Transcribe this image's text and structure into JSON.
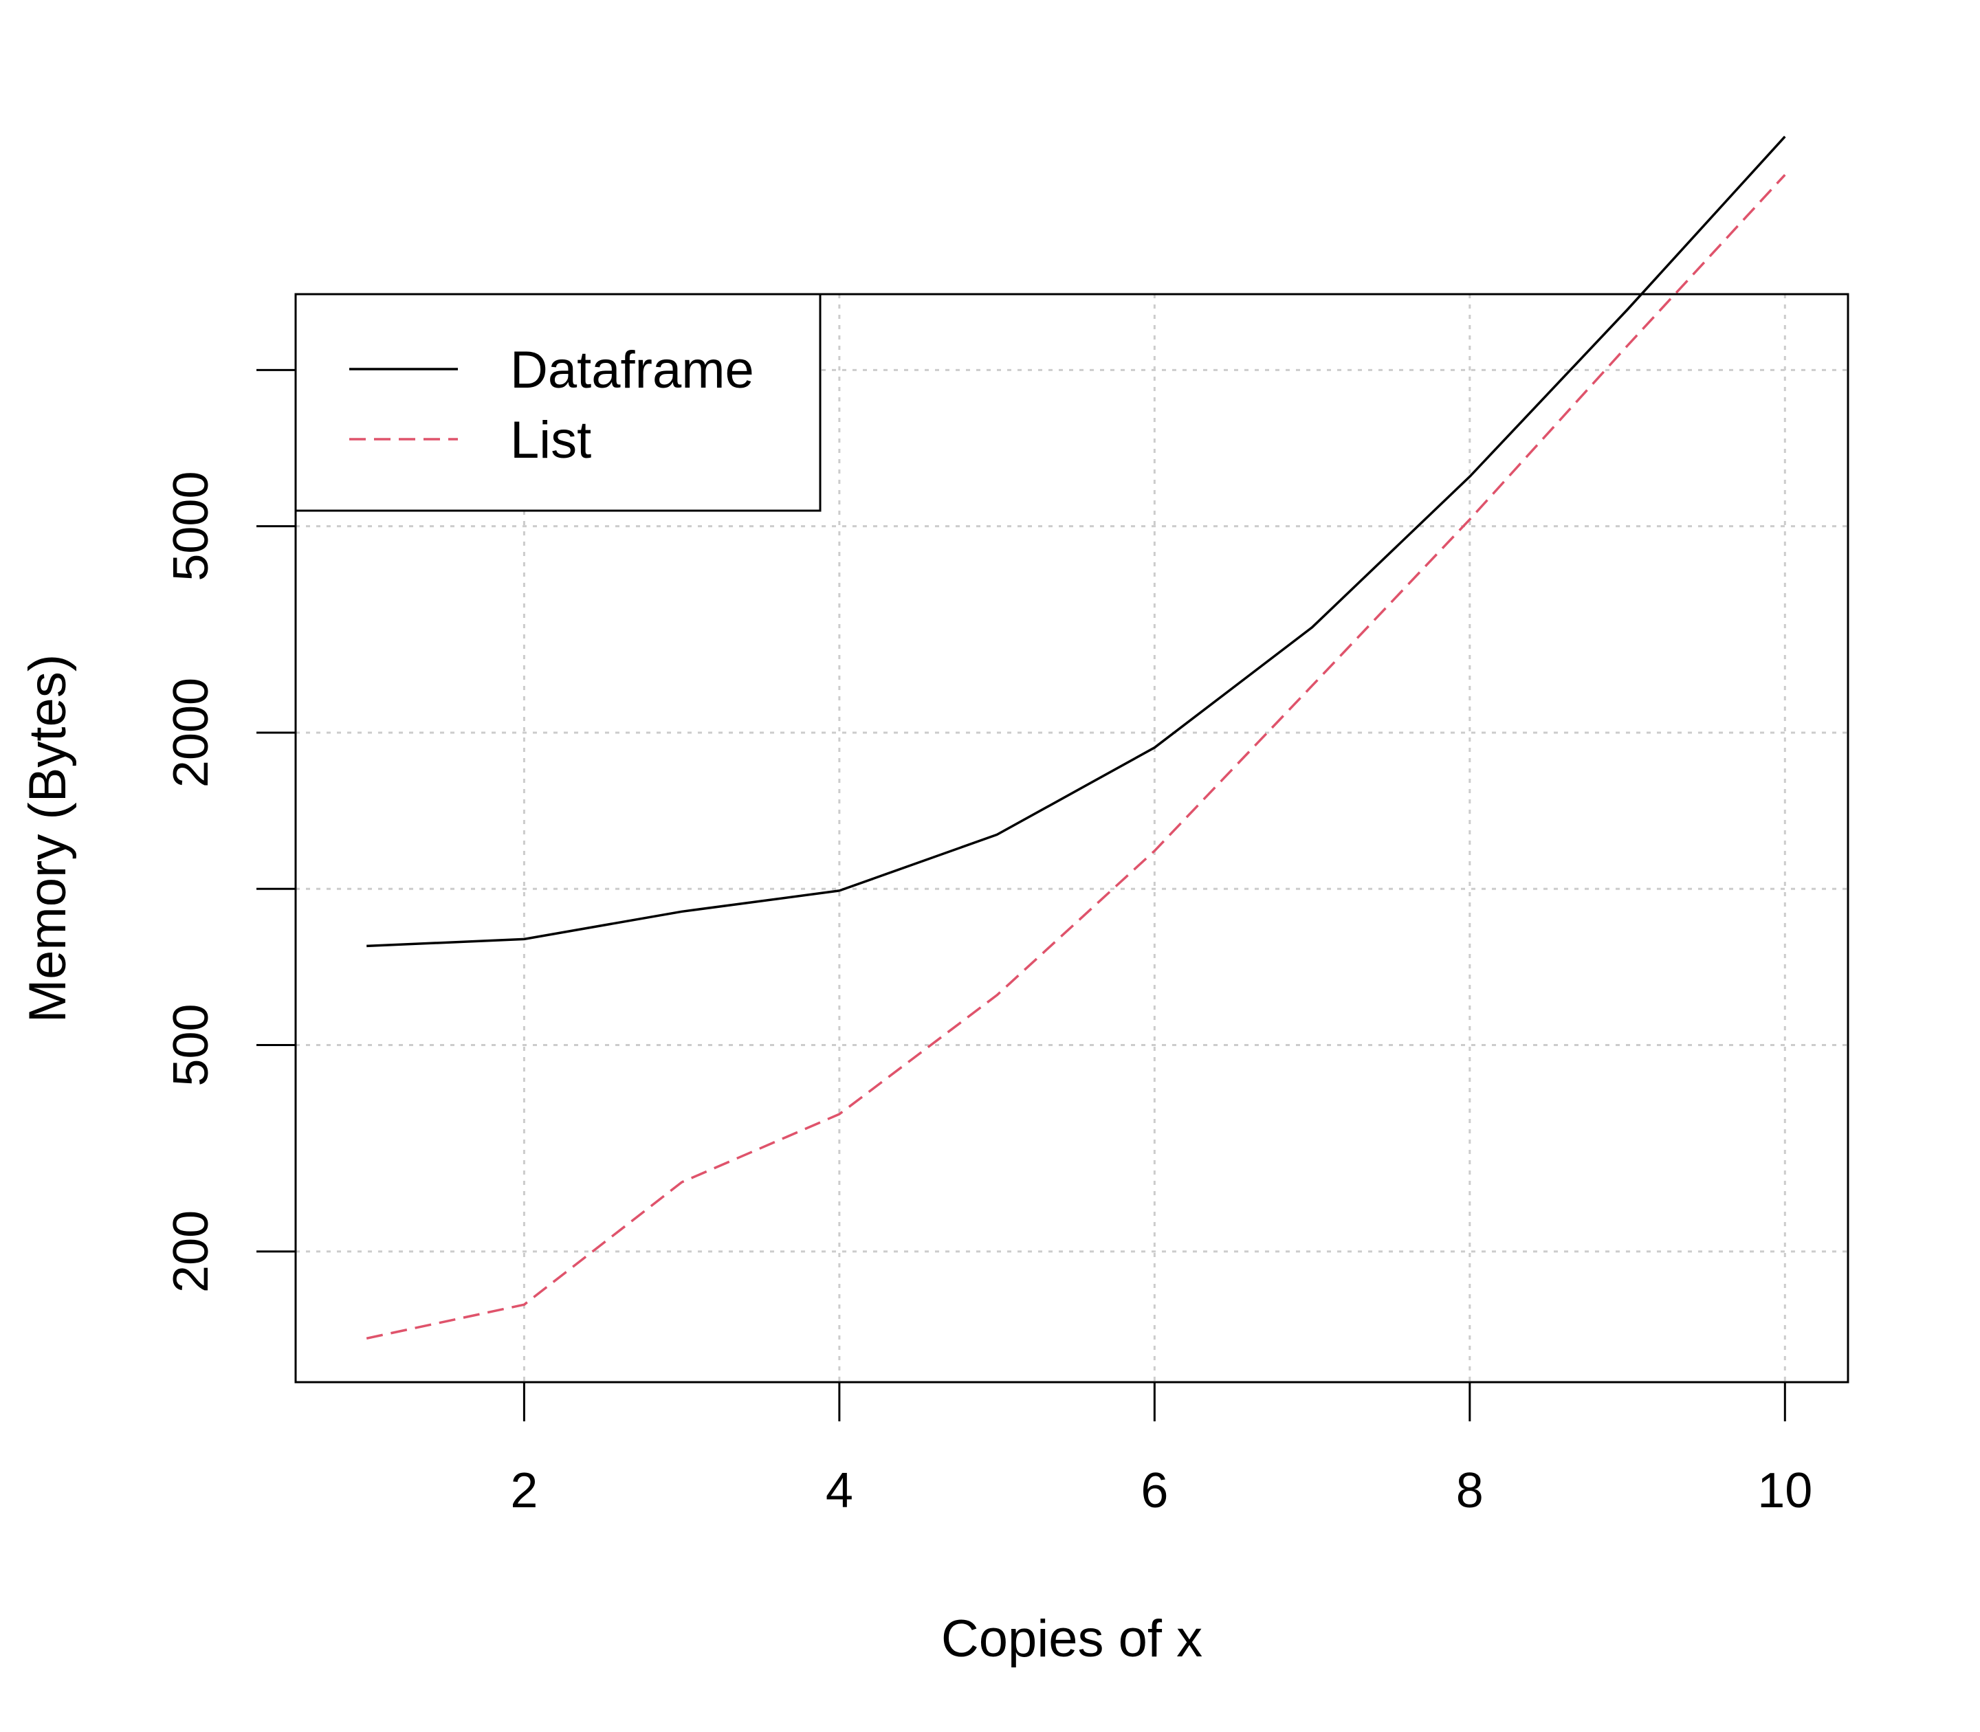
{
  "chart_data": {
    "type": "line",
    "title": "",
    "xlabel": "Copies of x",
    "ylabel": "Memory (Bytes)",
    "x": [
      1,
      2,
      3,
      4,
      5,
      6,
      7,
      8,
      9,
      10
    ],
    "x_ticks": [
      2,
      4,
      6,
      8,
      10
    ],
    "x_tick_labels": [
      "2",
      "4",
      "6",
      "8",
      "10"
    ],
    "xlim": [
      0.55,
      10.4
    ],
    "y_scale": "log",
    "y_ticks": [
      200,
      500,
      1000,
      2000,
      5000,
      10000
    ],
    "y_tick_labels": [
      "200",
      "500",
      "",
      "2000",
      "5000",
      ""
    ],
    "ylim": [
      112,
      14000
    ],
    "grid": true,
    "legend_position": "top-left",
    "series": [
      {
        "name": "Dataframe",
        "color": "#000000",
        "line_style": "solid",
        "values": [
          776,
          800,
          904,
          992,
          1272,
          1872,
          3192,
          6232,
          13072,
          28172
        ]
      },
      {
        "name": "List",
        "color": "#DF536B",
        "line_style": "dashed",
        "values": [
          136,
          158,
          272,
          368,
          624,
          1184,
          2464,
          5152,
          11136,
          23776
        ]
      }
    ]
  }
}
